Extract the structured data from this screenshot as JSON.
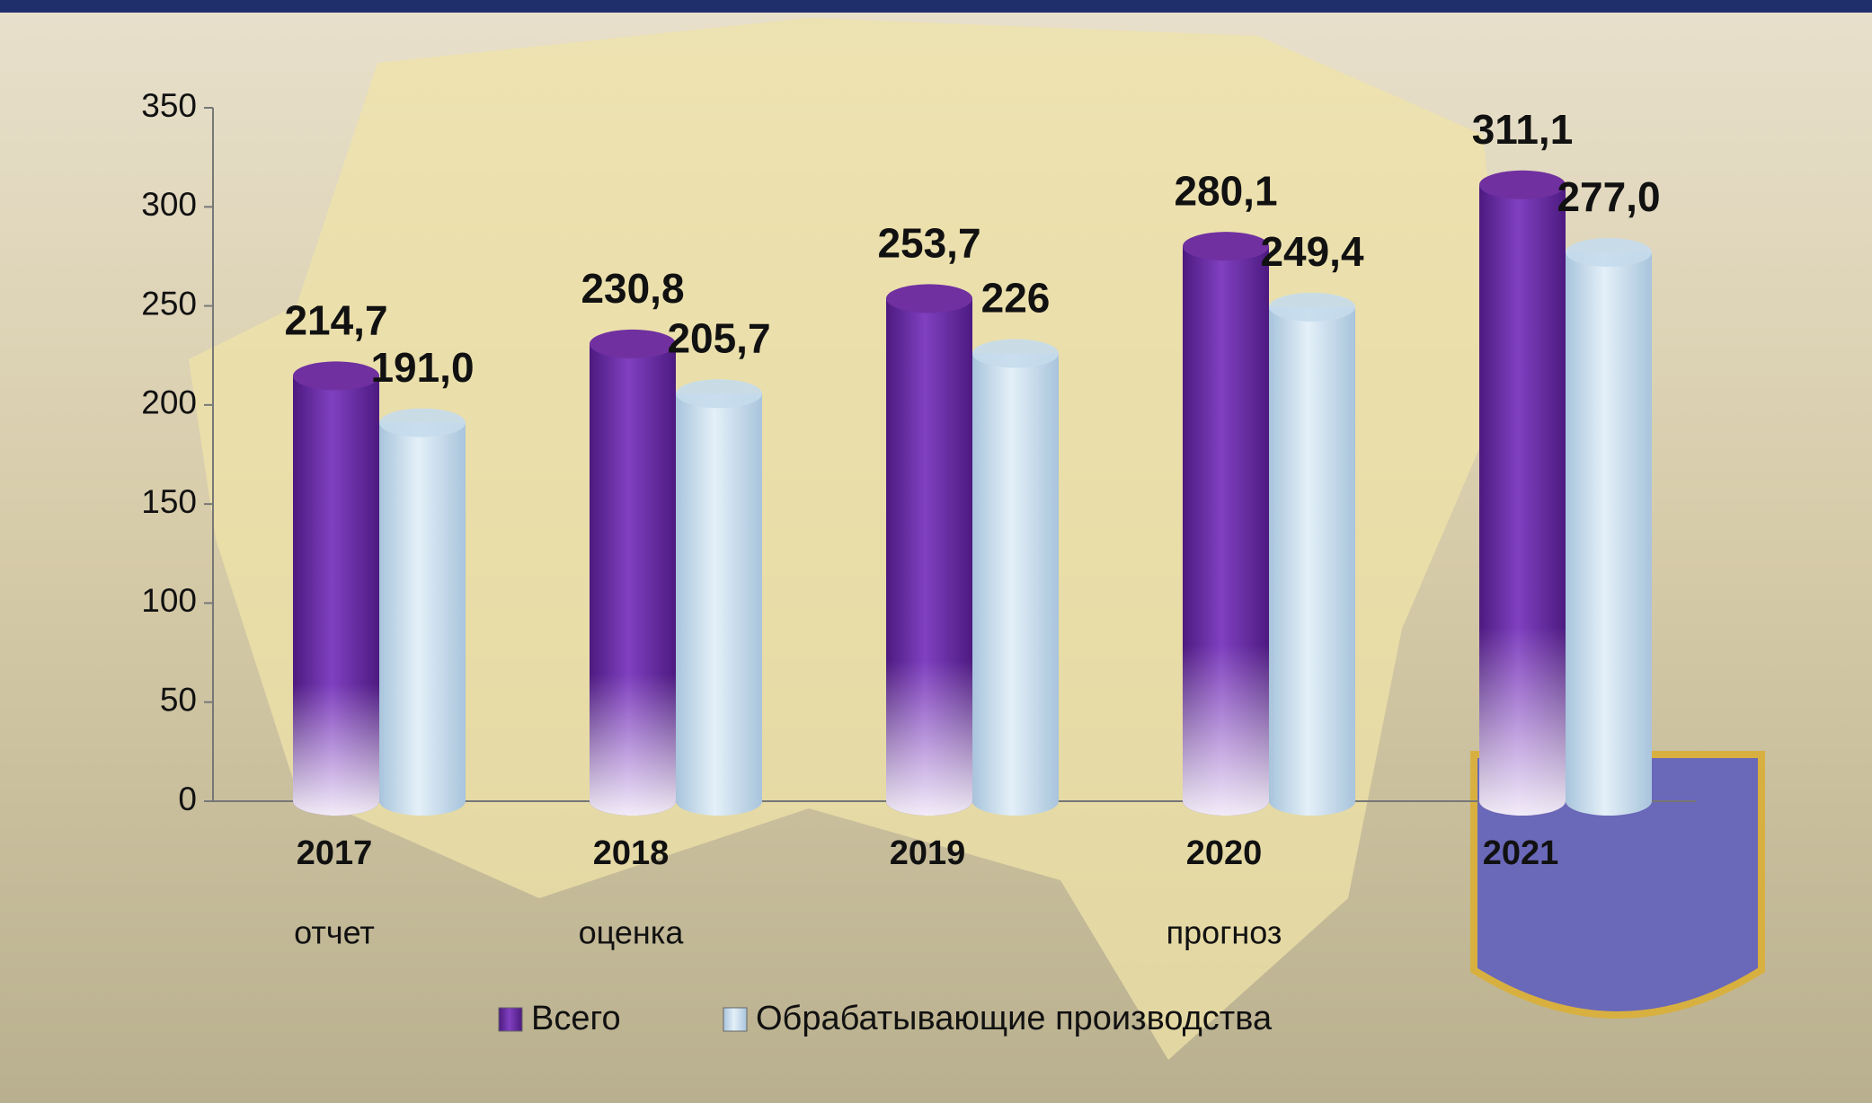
{
  "chart_data": {
    "type": "bar",
    "categories": [
      "2017",
      "2018",
      "2019",
      "2020",
      "2021"
    ],
    "category_notes": [
      "отчет",
      "оценка",
      null,
      "прогноз",
      null
    ],
    "series": [
      {
        "name": "Всего",
        "color": "#7030a0",
        "values": [
          214.7,
          230.8,
          253.7,
          280.1,
          311.1
        ],
        "value_labels": [
          "214,7",
          "230,8",
          "253,7",
          "280,1",
          "311,1"
        ]
      },
      {
        "name": "Обрабатывающие производства",
        "color": "#c5dcec",
        "values": [
          191.0,
          205.7,
          226,
          249.4,
          277.0
        ],
        "value_labels": [
          "191,0",
          "205,7",
          "226",
          "249,4",
          "277,0"
        ]
      }
    ],
    "ylim": [
      0,
      350
    ],
    "yticks": [
      0,
      50,
      100,
      150,
      200,
      250,
      300,
      350
    ],
    "legend": "bottom"
  }
}
